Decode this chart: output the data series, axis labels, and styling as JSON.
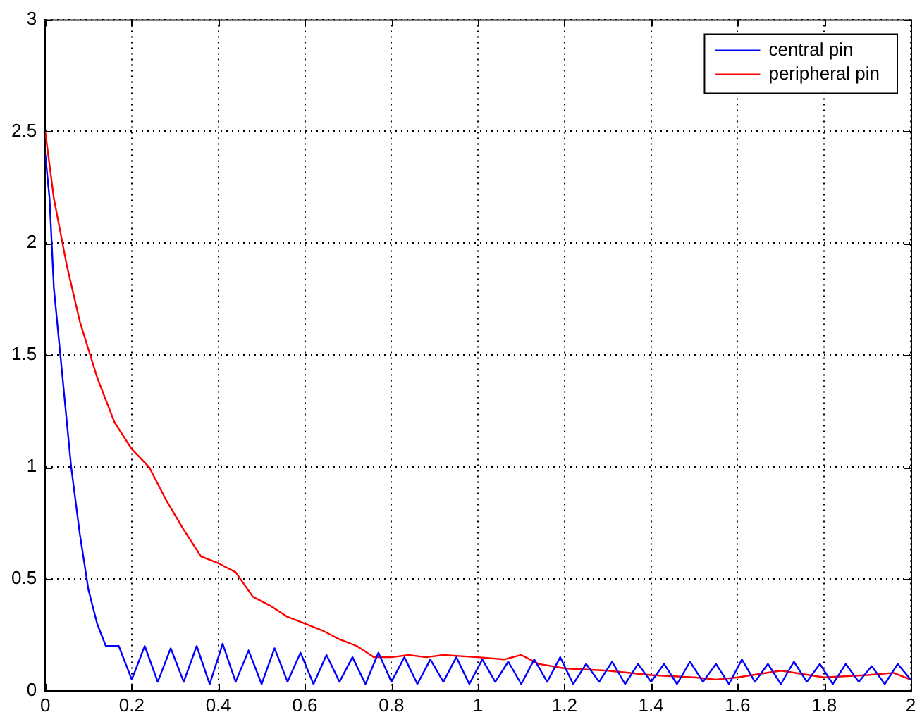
{
  "chart_data": {
    "type": "line",
    "xlim": [
      0,
      2
    ],
    "ylim": [
      0,
      3
    ],
    "xticks": [
      0,
      0.2,
      0.4,
      0.6,
      0.8,
      1,
      1.2,
      1.4,
      1.6,
      1.8,
      2
    ],
    "yticks": [
      0,
      0.5,
      1,
      1.5,
      2,
      2.5,
      3
    ],
    "grid": true,
    "legend": "top right",
    "marker": "none",
    "line_style": "solid",
    "series": [
      {
        "name": "central pin",
        "color": "#0000ff",
        "x": [
          0,
          0.01,
          0.02,
          0.04,
          0.06,
          0.08,
          0.1,
          0.12,
          0.14,
          0.17,
          0.2,
          0.23,
          0.26,
          0.29,
          0.32,
          0.35,
          0.38,
          0.41,
          0.44,
          0.47,
          0.5,
          0.53,
          0.56,
          0.59,
          0.62,
          0.65,
          0.68,
          0.71,
          0.74,
          0.77,
          0.8,
          0.83,
          0.86,
          0.89,
          0.92,
          0.95,
          0.98,
          1.01,
          1.04,
          1.07,
          1.1,
          1.13,
          1.16,
          1.19,
          1.22,
          1.25,
          1.28,
          1.31,
          1.34,
          1.37,
          1.4,
          1.43,
          1.46,
          1.49,
          1.52,
          1.55,
          1.58,
          1.61,
          1.64,
          1.67,
          1.7,
          1.73,
          1.76,
          1.79,
          1.82,
          1.85,
          1.88,
          1.91,
          1.94,
          1.97,
          2
        ],
        "values": [
          2.4,
          2.2,
          1.8,
          1.4,
          1.0,
          0.7,
          0.45,
          0.3,
          0.2,
          0.2,
          0.05,
          0.2,
          0.04,
          0.19,
          0.04,
          0.2,
          0.03,
          0.21,
          0.04,
          0.18,
          0.03,
          0.19,
          0.04,
          0.17,
          0.03,
          0.16,
          0.04,
          0.15,
          0.03,
          0.17,
          0.04,
          0.15,
          0.03,
          0.14,
          0.04,
          0.15,
          0.03,
          0.14,
          0.04,
          0.13,
          0.03,
          0.14,
          0.04,
          0.15,
          0.03,
          0.12,
          0.04,
          0.13,
          0.03,
          0.12,
          0.04,
          0.12,
          0.03,
          0.13,
          0.04,
          0.12,
          0.03,
          0.14,
          0.04,
          0.12,
          0.03,
          0.13,
          0.04,
          0.12,
          0.03,
          0.12,
          0.04,
          0.11,
          0.03,
          0.12,
          0.05
        ]
      },
      {
        "name": "peripheral pin",
        "color": "#ff0000",
        "x": [
          0,
          0.02,
          0.05,
          0.08,
          0.12,
          0.16,
          0.2,
          0.24,
          0.28,
          0.32,
          0.36,
          0.4,
          0.44,
          0.48,
          0.52,
          0.56,
          0.6,
          0.64,
          0.68,
          0.72,
          0.76,
          0.8,
          0.84,
          0.88,
          0.92,
          1,
          1.06,
          1.1,
          1.14,
          1.2,
          1.3,
          1.4,
          1.5,
          1.55,
          1.6,
          1.7,
          1.8,
          1.9,
          1.96,
          2
        ],
        "values": [
          2.5,
          2.2,
          1.9,
          1.65,
          1.4,
          1.2,
          1.08,
          1.0,
          0.85,
          0.72,
          0.6,
          0.57,
          0.53,
          0.42,
          0.38,
          0.33,
          0.3,
          0.27,
          0.23,
          0.2,
          0.15,
          0.15,
          0.16,
          0.15,
          0.16,
          0.15,
          0.14,
          0.16,
          0.12,
          0.1,
          0.09,
          0.07,
          0.06,
          0.05,
          0.06,
          0.09,
          0.06,
          0.07,
          0.08,
          0.05
        ]
      }
    ]
  }
}
